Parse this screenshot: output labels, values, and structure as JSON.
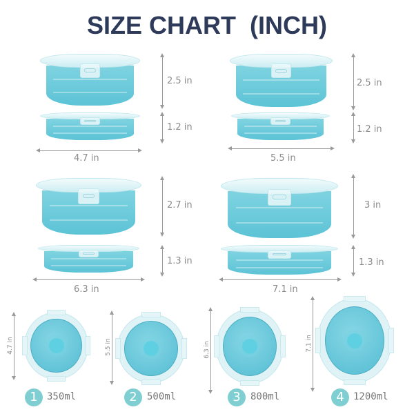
{
  "title": "SIZE CHART  (INCH)",
  "colors": {
    "title": "#2d3a5a",
    "silicone": "#5cc3d6",
    "lid": "#dff3f6",
    "badge": "#7fcfd2"
  },
  "side_views": [
    {
      "expanded_height": "2.5 in",
      "collapsed_height": "1.2 in",
      "width": "4.7 in"
    },
    {
      "expanded_height": "2.5 in",
      "collapsed_height": "1.2 in",
      "width": "5.5 in"
    },
    {
      "expanded_height": "2.7 in",
      "collapsed_height": "1.3 in",
      "width": "6.3 in"
    },
    {
      "expanded_height": "3 in",
      "collapsed_height": "1.3 in",
      "width": "7.1 in"
    }
  ],
  "top_views": [
    {
      "number": "1",
      "diameter": "4.7 in",
      "capacity": "350ml"
    },
    {
      "number": "2",
      "diameter": "5.5 in",
      "capacity": "500ml"
    },
    {
      "number": "3",
      "diameter": "6.3 in",
      "capacity": "800ml"
    },
    {
      "number": "4",
      "diameter": "7.1 in",
      "capacity": "1200ml"
    }
  ]
}
